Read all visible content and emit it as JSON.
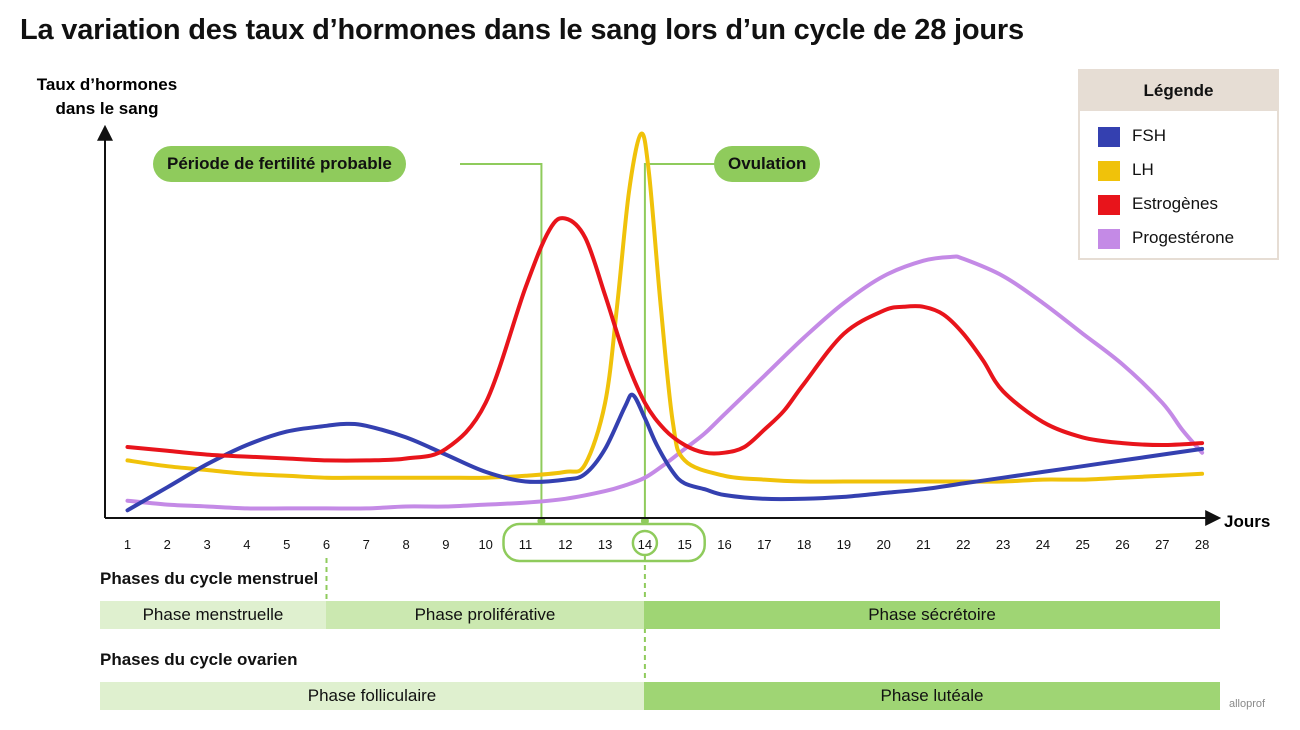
{
  "title": "La variation des taux d’hormones dans le sang lors d’un cycle de 28 jours",
  "chart_data": {
    "type": "line",
    "title": "La variation des taux d’hormones dans le sang lors d’un cycle de 28 jours",
    "ylabel": [
      "Taux d’hormones",
      "dans le sang"
    ],
    "xlabel": "Jours",
    "x_ticks": [
      1,
      2,
      3,
      4,
      5,
      6,
      7,
      8,
      9,
      10,
      11,
      12,
      13,
      14,
      15,
      16,
      17,
      18,
      19,
      20,
      21,
      22,
      23,
      24,
      25,
      26,
      27,
      28
    ],
    "ylim": [
      0,
      100
    ],
    "series": [
      {
        "name": "FSH",
        "color": "#3440b0",
        "x": [
          1,
          2,
          3,
          4,
          5,
          6,
          6.5,
          7,
          8,
          9,
          10,
          11,
          12,
          12.5,
          13,
          13.5,
          13.7,
          14,
          14.3,
          14.7,
          15,
          15.5,
          16,
          17,
          18,
          19,
          20,
          21,
          22,
          23,
          24,
          25,
          26,
          27,
          28
        ],
        "y": [
          2,
          8,
          14,
          19,
          22.5,
          24,
          24.5,
          24,
          21,
          16.5,
          12,
          9.5,
          10,
          11.5,
          18,
          29,
          32,
          26,
          19,
          12,
          9,
          7.5,
          6,
          5,
          5,
          5.5,
          6.5,
          7.5,
          9,
          10.5,
          12,
          13.5,
          15,
          16.5,
          18
        ]
      },
      {
        "name": "LH",
        "color": "#f0c20a",
        "x": [
          1,
          2,
          3,
          4,
          5,
          6,
          7,
          8,
          9,
          10,
          11,
          12,
          12.5,
          13,
          13.3,
          13.6,
          13.9,
          14.1,
          14.4,
          14.7,
          15,
          16,
          17,
          18,
          19,
          20,
          21,
          22,
          23,
          24,
          25,
          26,
          27,
          28
        ],
        "y": [
          15,
          13.5,
          12.5,
          11.5,
          11,
          10.5,
          10.5,
          10.5,
          10.5,
          10.5,
          11,
          12,
          14,
          30,
          55,
          85,
          100,
          90,
          55,
          25,
          15,
          11,
          10,
          9.5,
          9.5,
          9.5,
          9.5,
          9.5,
          9.5,
          10,
          10,
          10.5,
          11,
          11.5
        ]
      },
      {
        "name": "Estrogènes",
        "color": "#e8141b",
        "x": [
          1,
          2,
          3,
          4,
          5,
          6,
          7,
          8,
          9,
          10,
          11,
          11.6,
          12,
          12.5,
          13,
          13.5,
          14,
          14.5,
          15,
          15.5,
          16,
          16.5,
          17,
          17.5,
          18,
          19,
          20,
          20.5,
          21,
          21.5,
          22,
          22.5,
          23,
          24,
          25,
          26,
          27,
          28
        ],
        "y": [
          18.5,
          17.5,
          16.5,
          16,
          15.5,
          15,
          15,
          15.5,
          18,
          30,
          60,
          75,
          78,
          73,
          58,
          42,
          30,
          23,
          19,
          17,
          17,
          18.5,
          23,
          28,
          35,
          48,
          54,
          55,
          55,
          53,
          48,
          41,
          33,
          25,
          21,
          19.5,
          19,
          19.5
        ]
      },
      {
        "name": "Progestérone",
        "color": "#c48ae6",
        "x": [
          1,
          2,
          3,
          4,
          5,
          6,
          7,
          8,
          9,
          10,
          11,
          12,
          13,
          13.5,
          14,
          14.5,
          15,
          15.5,
          16,
          17,
          18,
          19,
          20,
          21,
          21.7,
          22,
          23,
          24,
          25,
          26,
          27,
          27.5,
          28
        ],
        "y": [
          4.5,
          3.5,
          3,
          2.5,
          2.5,
          2.5,
          2.5,
          3,
          3,
          3.5,
          4,
          5,
          7,
          8.5,
          10.5,
          14,
          18,
          22,
          27,
          37,
          47,
          56,
          63,
          67,
          68,
          67.5,
          63,
          56,
          48,
          40,
          30,
          23,
          17
        ]
      }
    ],
    "annotations": [
      {
        "label": "Période de fertilité probable",
        "range_days": [
          11,
          15
        ]
      },
      {
        "label": "Ovulation",
        "day": 14
      }
    ],
    "legend": {
      "title": "Légende",
      "position": "top-right"
    },
    "phases": {
      "menstrual_title": "Phases du cycle menstruel",
      "menstrual": [
        {
          "label": "Phase menstruelle",
          "start_day": 1,
          "end_day": 6
        },
        {
          "label": "Phase proliférative",
          "start_day": 6,
          "end_day": 14
        },
        {
          "label": "Phase sécrétoire",
          "start_day": 14,
          "end_day": 28
        }
      ],
      "ovarian_title": "Phases du cycle ovarien",
      "ovarian": [
        {
          "label": "Phase folliculaire",
          "start_day": 1,
          "end_day": 14
        },
        {
          "label": "Phase lutéale",
          "start_day": 14,
          "end_day": 28
        }
      ]
    }
  },
  "brand": "alloprof"
}
